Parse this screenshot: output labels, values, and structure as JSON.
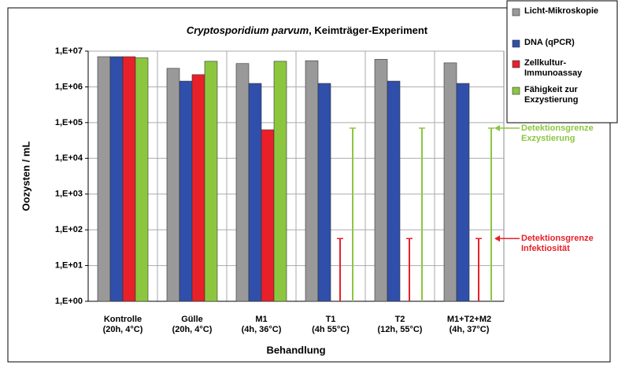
{
  "chart_data": {
    "type": "bar",
    "title_italic": "Cryptosporidium parvum",
    "title": ", Keimträger-Experiment",
    "y_label": "Oozysten / mL",
    "x_label": "Behandlung",
    "log_scale": true,
    "grid": true,
    "legend_position": "right",
    "categories": [
      "Kontrolle\n(20h, 4°C)",
      "Gülle\n(20h, 4°C)",
      "M1\n(4h, 36°C)",
      "T1\n(4h 55°C)",
      "T2\n(12h, 55°C)",
      "M1+T2+M2\n(4h, 37°C)"
    ],
    "series": [
      {
        "name": "Licht-Mikroskopie",
        "color": "#999999",
        "values": [
          7000000,
          3300000,
          4500000,
          5400000,
          5900000,
          4700000
        ]
      },
      {
        "name": "DNA (qPCR)",
        "color": "#2f4faa",
        "values": [
          7000000,
          1450000,
          1250000,
          1250000,
          1450000,
          1250000
        ]
      },
      {
        "name": "Zellkultur-Immunoassay",
        "color": "#e8202a",
        "values": [
          7000000,
          2200000,
          63000,
          null,
          null,
          null
        ]
      },
      {
        "name": "Fähigkeit zur Exzystierung",
        "color": "#8cc63f",
        "values": [
          6500000,
          5200000,
          5200000,
          null,
          null,
          null
        ]
      }
    ],
    "detection_limits": [
      {
        "label": "Detektionsgrenze\nExzystierung",
        "color": "#8cc63f",
        "series_index": 3,
        "values": [
          null,
          null,
          null,
          70000,
          70000,
          70000
        ]
      },
      {
        "label": "Detektionsgrenze\nInfektiosität",
        "color": "#e8202a",
        "series_index": 2,
        "values": [
          null,
          null,
          null,
          57,
          57,
          57
        ]
      }
    ],
    "ylim": [
      1,
      10000000
    ],
    "yticks": [
      {
        "value": 1,
        "label": "1,E+00"
      },
      {
        "value": 10,
        "label": "1,E+01"
      },
      {
        "value": 100,
        "label": "1,E+02"
      },
      {
        "value": 1000,
        "label": "1,E+03"
      },
      {
        "value": 10000,
        "label": "1,E+04"
      },
      {
        "value": 100000,
        "label": "1,E+05"
      },
      {
        "value": 1000000,
        "label": "1,E+06"
      },
      {
        "value": 10000000,
        "label": "1,E+07"
      }
    ]
  }
}
